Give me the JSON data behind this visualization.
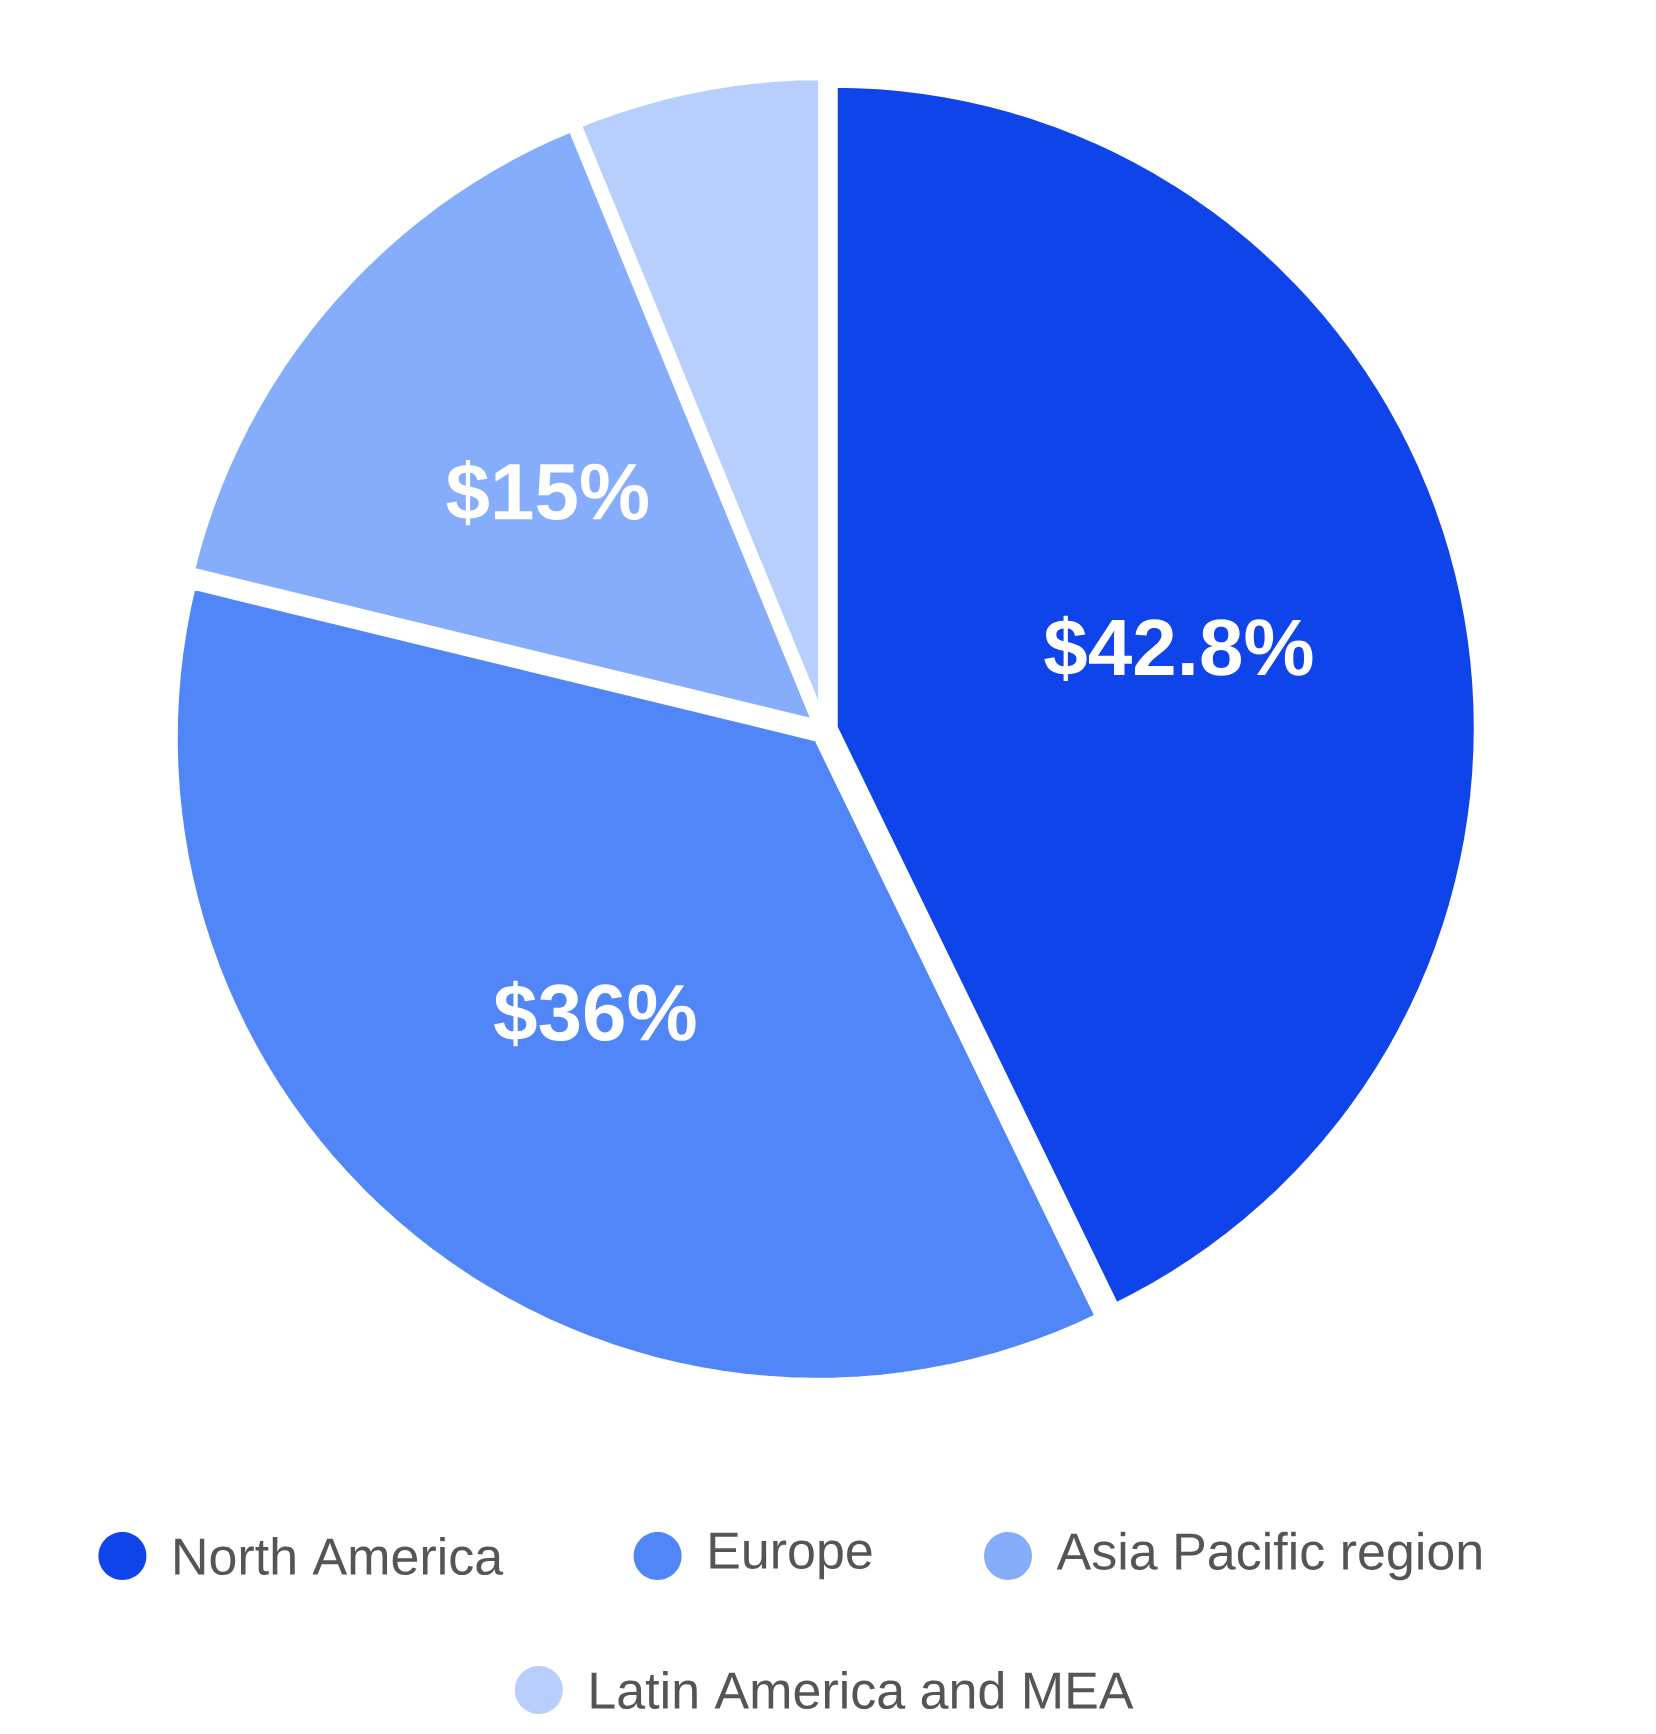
{
  "chart_data": {
    "type": "pie",
    "categories": [
      "North America",
      "Europe",
      "Asia Pacific region",
      "Latin America and MEA"
    ],
    "values": [
      42.8,
      36,
      15,
      6.2
    ],
    "colors": [
      "#0f44ea",
      "#5086f8",
      "#86adfc",
      "#b8cefd"
    ],
    "value_labels": [
      "$42.8%",
      "$36%",
      "$15%",
      null
    ],
    "legend": "bottom"
  }
}
